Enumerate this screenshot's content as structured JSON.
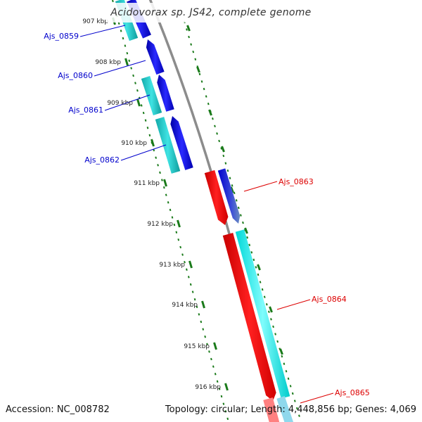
{
  "title": "Acidovorax sp. JS42, complete genome",
  "footer": {
    "accession": "Accession: NC_008782",
    "summary": "Topology: circular; Length: 4,448,856 bp; Genes: 4,069"
  },
  "colors": {
    "backbone": "#8c8c8c",
    "tick": "#1a7a1a",
    "forward_gene": "#0000e0",
    "forward_gene_alt": "#1fc2c2",
    "reverse_gene": "#ff0000",
    "reverse_gene_alt": "#00e6e6",
    "label_forward": "#0000cc",
    "label_reverse": "#dd0000"
  },
  "kbp_marks": [
    "907 kbp",
    "908 kbp",
    "909 kbp",
    "910 kbp",
    "911 kbp",
    "912 kbp",
    "913 kbp",
    "914 kbp",
    "915 kbp",
    "916 kbp"
  ],
  "genes": [
    {
      "id": "Ajs_0859",
      "strand": "forward"
    },
    {
      "id": "Ajs_0860",
      "strand": "forward"
    },
    {
      "id": "Ajs_0861",
      "strand": "forward"
    },
    {
      "id": "Ajs_0862",
      "strand": "forward"
    },
    {
      "id": "Ajs_0863",
      "strand": "reverse"
    },
    {
      "id": "Ajs_0864",
      "strand": "reverse"
    },
    {
      "id": "Ajs_0865",
      "strand": "reverse"
    }
  ]
}
